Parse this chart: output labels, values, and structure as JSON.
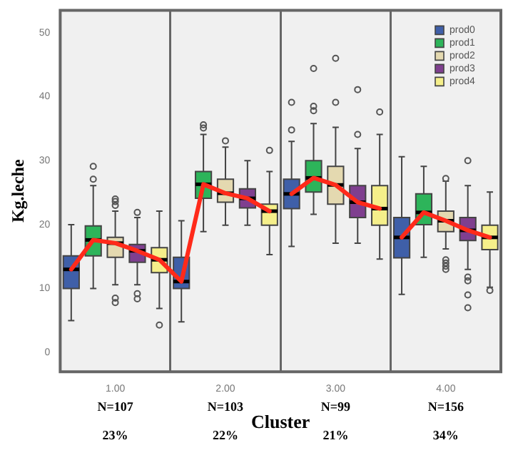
{
  "chart_data": {
    "type": "box",
    "xlabel": "Cluster",
    "ylabel": "Kg.leche",
    "categories": [
      null,
      null,
      "1.00",
      null,
      null,
      null,
      null,
      "2.00",
      null,
      null,
      null,
      null,
      "3.00",
      null,
      null,
      null,
      null,
      "4.00",
      null,
      null
    ],
    "ylim": [
      -3,
      53.5
    ],
    "yticks": [
      0,
      10,
      20,
      30,
      40,
      50
    ],
    "legend": "top right",
    "annotations": [
      "N=107",
      "23%",
      "N=103",
      "22%",
      "N=99",
      "21%",
      "N=156",
      "34%"
    ],
    "series": [
      {
        "name": "prod0",
        "color": "#3f5fa8",
        "boxes": [
          {
            "low": 5.0,
            "q1": 10.0,
            "median": 13.0,
            "q3": 15.1,
            "high": 20.0
          },
          null,
          null,
          null,
          null,
          {
            "low": 4.8,
            "q1": 10.0,
            "median": 11.1,
            "q3": 14.9,
            "high": 20.6
          },
          null,
          null,
          null,
          null,
          {
            "low": 16.6,
            "q1": 22.5,
            "median": 24.8,
            "q3": 27.1,
            "high": 33.0,
            "outliers": [
              34.8,
              39.1
            ]
          },
          null,
          null,
          null,
          null,
          {
            "low": 9.1,
            "q1": 14.8,
            "median": 18.0,
            "q3": 21.1,
            "high": 30.6
          },
          null,
          null,
          null,
          null
        ]
      },
      {
        "name": "prod1",
        "color": "#2db45a",
        "boxes": [
          null,
          {
            "low": 10.0,
            "q1": 15.1,
            "median": 17.6,
            "q3": 19.8,
            "high": 26.1,
            "outliers": [
              27.1,
              29.1
            ]
          },
          null,
          null,
          null,
          null,
          {
            "low": 18.9,
            "q1": 24.1,
            "median": 26.3,
            "q3": 28.3,
            "high": 34.1,
            "outliers": [
              35.1,
              35.6
            ]
          },
          null,
          null,
          null,
          null,
          {
            "low": 21.6,
            "q1": 25.1,
            "median": 27.3,
            "q3": 30.0,
            "high": 35.8,
            "outliers": [
              37.8,
              38.5,
              44.4
            ]
          },
          null,
          null,
          null,
          null,
          {
            "low": 14.9,
            "q1": 20.0,
            "median": 21.9,
            "q3": 24.8,
            "high": 29.1
          },
          null,
          null,
          null
        ]
      },
      {
        "name": "prod2",
        "color": "#e4d9b0",
        "boxes": [
          null,
          null,
          {
            "low": 10.6,
            "q1": 14.9,
            "median": 17.1,
            "q3": 18.0,
            "high": 22.1,
            "outliers": [
              7.8,
              8.5,
              23.0,
              23.6,
              24.0
            ]
          },
          null,
          null,
          null,
          null,
          {
            "low": 19.9,
            "q1": 23.5,
            "median": 24.9,
            "q3": 27.1,
            "high": 32.1,
            "outliers": [
              33.1
            ]
          },
          null,
          null,
          null,
          null,
          {
            "low": 17.1,
            "q1": 23.2,
            "median": 26.2,
            "q3": 29.1,
            "high": 35.2,
            "outliers": [
              39.1,
              46.0
            ]
          },
          null,
          null,
          null,
          null,
          {
            "low": 16.2,
            "q1": 18.9,
            "median": 20.6,
            "q3": 22.1,
            "high": 26.8,
            "outliers": [
              13.0,
              13.5,
              14.0,
              14.5,
              27.2
            ]
          },
          null,
          null
        ]
      },
      {
        "name": "prod3",
        "color": "#7f3f8f",
        "boxes": [
          null,
          null,
          null,
          {
            "low": 10.6,
            "q1": 14.1,
            "median": 15.9,
            "q3": 16.9,
            "high": 21.1,
            "outliers": [
              8.4,
              9.2,
              21.9
            ]
          },
          null,
          null,
          null,
          null,
          {
            "low": 19.9,
            "q1": 22.6,
            "median": 24.1,
            "q3": 25.6,
            "high": 30.0
          },
          null,
          null,
          null,
          null,
          {
            "low": 17.1,
            "q1": 21.1,
            "median": 23.5,
            "q3": 26.1,
            "high": 31.9,
            "outliers": [
              34.1,
              41.1
            ]
          },
          null,
          null,
          null,
          null,
          {
            "low": 13.0,
            "q1": 17.5,
            "median": 19.1,
            "q3": 21.1,
            "high": 26.1,
            "outliers": [
              7.0,
              9.0,
              11.2,
              11.8,
              30.0
            ]
          },
          null
        ]
      },
      {
        "name": "prod4",
        "color": "#f5ef8a",
        "boxes": [
          null,
          null,
          null,
          null,
          {
            "low": 6.9,
            "q1": 12.5,
            "median": 14.5,
            "q3": 16.4,
            "high": 22.1,
            "outliers": [
              4.3
            ]
          },
          null,
          null,
          null,
          null,
          {
            "low": 15.3,
            "q1": 19.9,
            "median": 22.1,
            "q3": 23.2,
            "high": 28.3,
            "outliers": [
              31.6
            ]
          },
          null,
          null,
          null,
          null,
          {
            "low": 14.6,
            "q1": 19.9,
            "median": 22.5,
            "q3": 26.1,
            "high": 34.1,
            "outliers": [
              37.6
            ]
          },
          null,
          null,
          null,
          null,
          {
            "low": 10.2,
            "q1": 16.1,
            "median": 18.0,
            "q3": 19.9,
            "high": 25.1,
            "outliers": [
              9.7
            ]
          }
        ]
      },
      {
        "type": "line",
        "color": "#ff2a1a",
        "values": [
          13.0,
          17.6,
          17.1,
          15.9,
          14.5,
          11.1,
          26.3,
          24.9,
          24.1,
          22.1,
          null,
          null,
          null,
          null,
          null,
          null,
          null,
          null,
          null,
          null
        ]
      },
      {
        "type": "line",
        "color": "#ff2a1a",
        "values": [
          null,
          null,
          null,
          null,
          null,
          null,
          null,
          null,
          null,
          null,
          24.8,
          27.3,
          26.2,
          23.5,
          22.5,
          null,
          null,
          null,
          null,
          null
        ]
      },
      {
        "type": "line",
        "color": "#ff2a1a",
        "values": [
          null,
          null,
          null,
          null,
          null,
          null,
          null,
          null,
          null,
          null,
          null,
          null,
          null,
          null,
          null,
          18.0,
          21.9,
          20.6,
          19.1,
          18.0
        ]
      }
    ]
  }
}
